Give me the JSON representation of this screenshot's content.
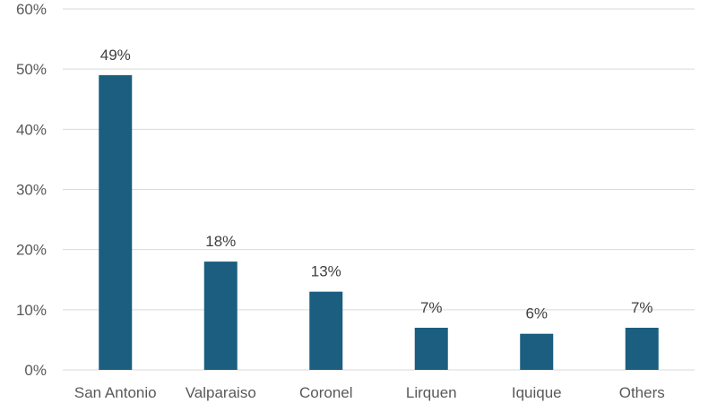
{
  "chart_data": {
    "type": "bar",
    "title": "",
    "xlabel": "",
    "ylabel": "",
    "categories": [
      "San Antonio",
      "Valparaiso",
      "Coronel",
      "Lirquen",
      "Iquique",
      "Others"
    ],
    "values": [
      49,
      18,
      13,
      7,
      6,
      7
    ],
    "data_labels": [
      "49%",
      "18%",
      "13%",
      "7%",
      "6%",
      "7%"
    ],
    "ylim": [
      0,
      60
    ],
    "yticks": [
      0,
      10,
      20,
      30,
      40,
      50,
      60
    ],
    "ytick_labels": [
      "0%",
      "10%",
      "20%",
      "30%",
      "40%",
      "50%",
      "60%"
    ],
    "grid": true,
    "legend": "none",
    "colors": {
      "bar": "#1B5E7F",
      "grid": "#d9d9d9",
      "axis_text": "#595959",
      "data_label_text": "#404040"
    }
  }
}
